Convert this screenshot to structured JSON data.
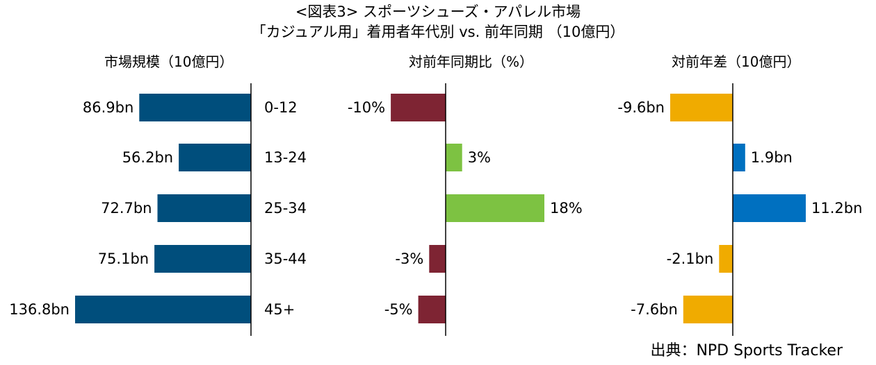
{
  "header": {
    "title_line1": "<図表3> スポーツシューズ・アパレル市場",
    "title_line2": "「カジュアル用」着用者年代別 vs. 前年同期 （10億円）"
  },
  "source": "出典：NPD Sports Tracker",
  "categories": [
    "0-12",
    "13-24",
    "25-34",
    "35-44",
    "45+"
  ],
  "colors": {
    "market": "#004E7C",
    "yoy_positive": "#7DC242",
    "yoy_negative": "#7E2433",
    "diff_positive": "#0070C0",
    "diff_negative": "#F0AB00"
  },
  "chart_data": [
    {
      "type": "bar",
      "orientation": "horizontal",
      "title": "市場規模（10億円）",
      "categories": [
        "0-12",
        "13-24",
        "25-34",
        "35-44",
        "45+"
      ],
      "values": [
        86.9,
        56.2,
        72.7,
        75.1,
        136.8
      ],
      "labels": [
        "86.9bn",
        "56.2bn",
        "72.7bn",
        "75.1bn",
        "136.8bn"
      ]
    },
    {
      "type": "bar",
      "orientation": "horizontal",
      "title": "対前年同期比（%）",
      "categories": [
        "0-12",
        "13-24",
        "25-34",
        "35-44",
        "45+"
      ],
      "values": [
        -10,
        3,
        18,
        -3,
        -5
      ],
      "labels": [
        "-10%",
        "3%",
        "18%",
        "-3%",
        "-5%"
      ]
    },
    {
      "type": "bar",
      "orientation": "horizontal",
      "title": "対前年差（10億円）",
      "categories": [
        "0-12",
        "13-24",
        "25-34",
        "35-44",
        "45+"
      ],
      "values": [
        -9.6,
        1.9,
        11.2,
        -2.1,
        -7.6
      ],
      "labels": [
        "-9.6bn",
        "1.9bn",
        "11.2bn",
        "-2.1bn",
        "-7.6bn"
      ]
    }
  ]
}
